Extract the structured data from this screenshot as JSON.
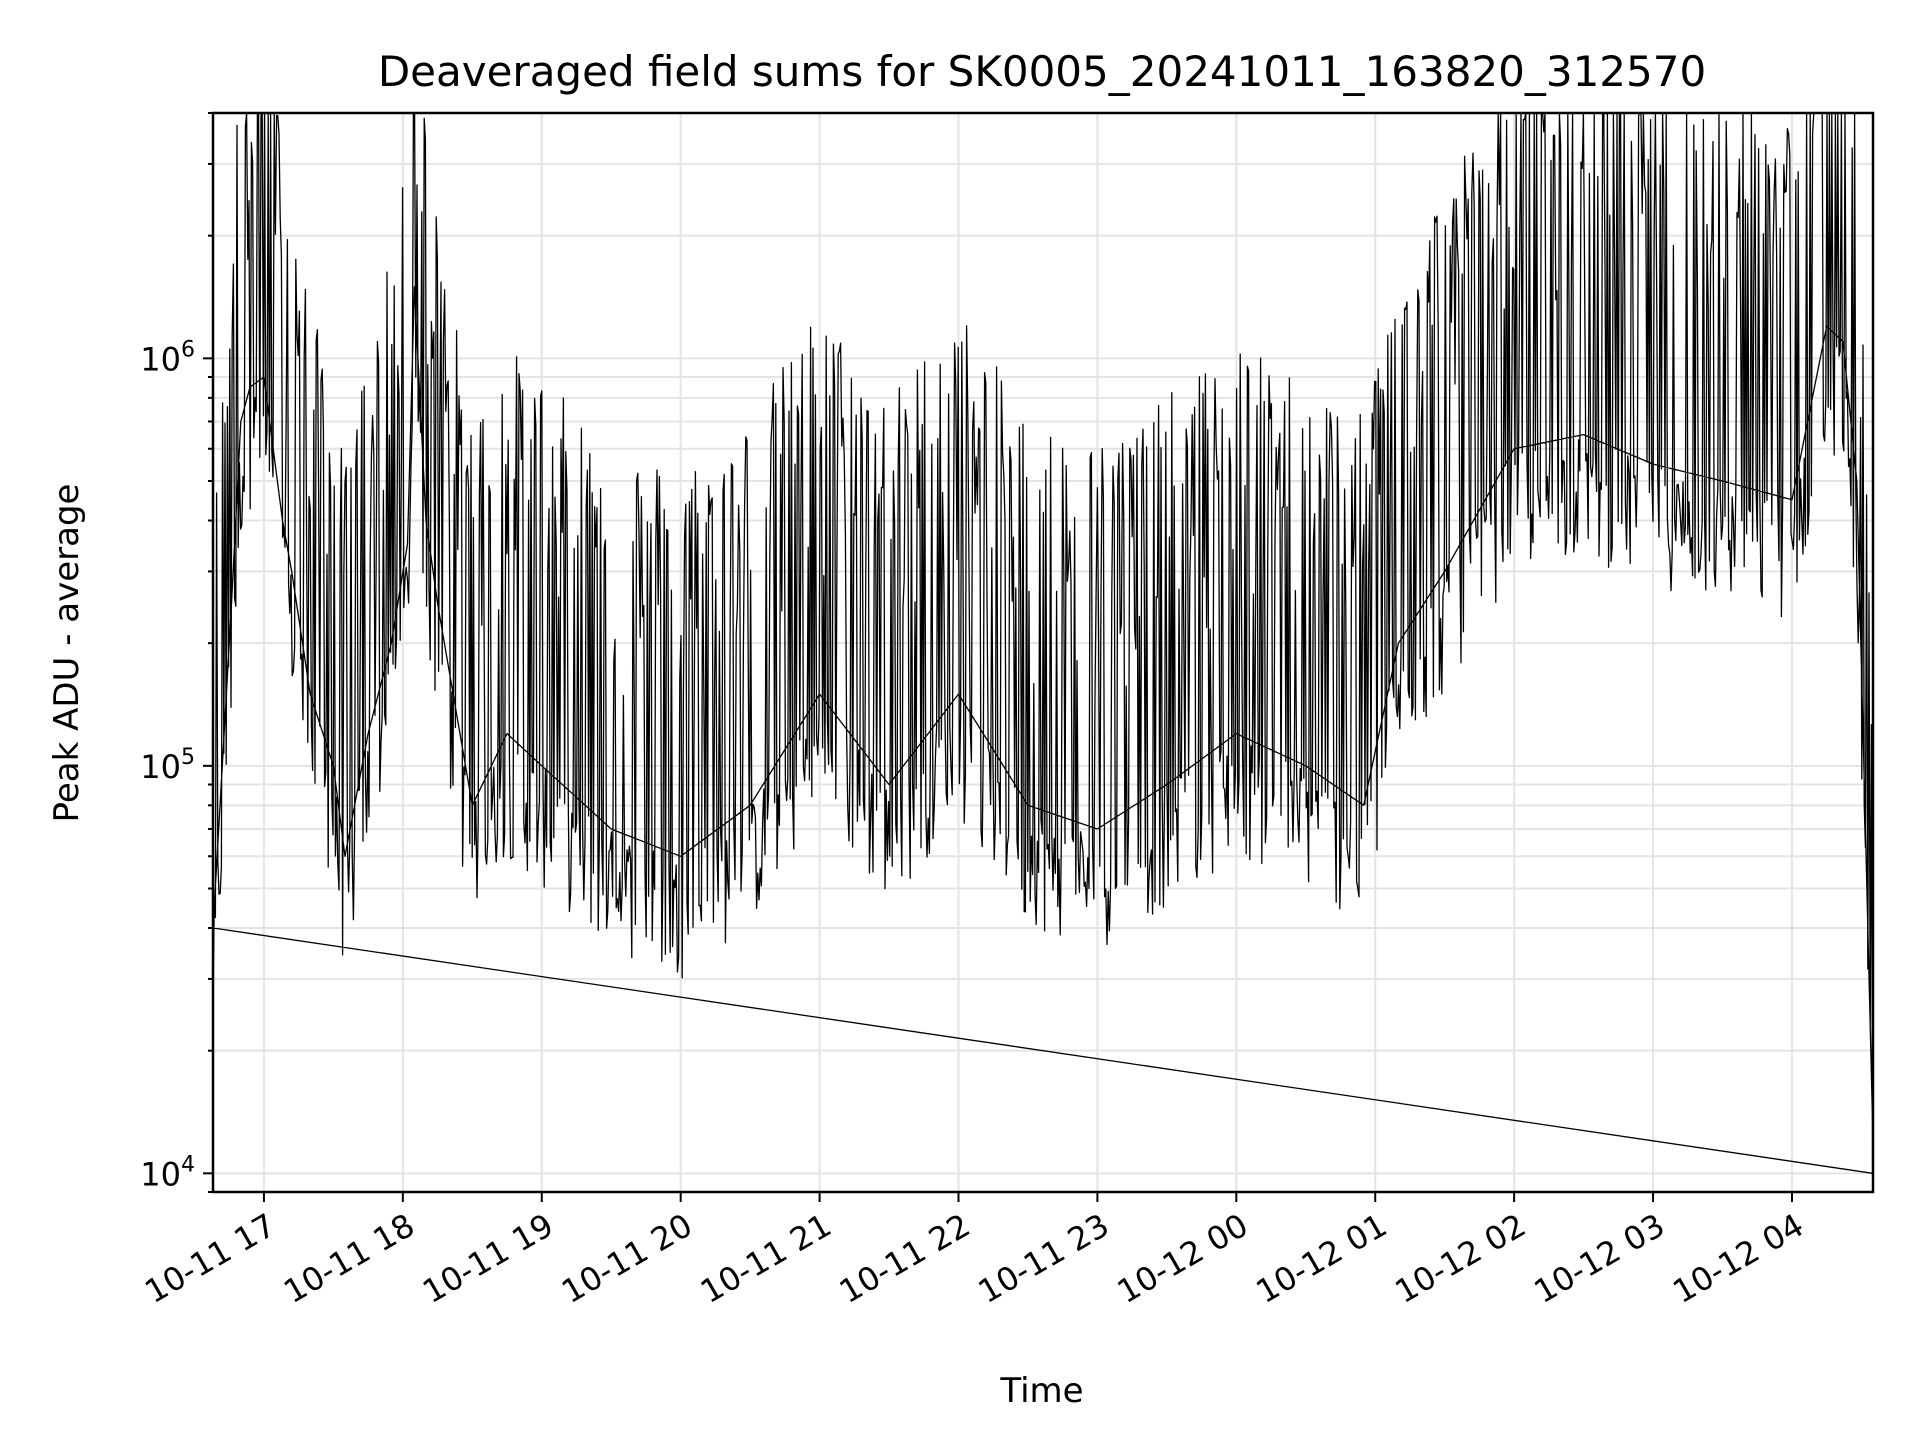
{
  "chart_data": {
    "type": "line",
    "title": "Deaveraged field sums for SK0005_20241011_163820_312570",
    "xlabel": "Time",
    "ylabel": "Peak ADU - average",
    "yscale": "log",
    "ylim": [
      9000,
      4000000
    ],
    "xlim": [
      "2024-10-11 16:38",
      "2024-10-12 04:35"
    ],
    "grid": true,
    "x_ticks": [
      "10-11 17",
      "10-11 18",
      "10-11 19",
      "10-11 20",
      "10-11 21",
      "10-11 22",
      "10-11 23",
      "10-12 00",
      "10-12 01",
      "10-12 02",
      "10-12 03",
      "10-12 04"
    ],
    "y_ticks": [
      "10^4",
      "10^5",
      "10^6"
    ],
    "series": [
      {
        "color": "#000000",
        "x": [
          "2024-10-11 16:38",
          "2024-10-11 16:42",
          "2024-10-11 16:46",
          "2024-10-11 16:50",
          "2024-10-11 16:54",
          "2024-10-11 17:00",
          "2024-10-11 17:08",
          "2024-10-11 17:12",
          "2024-10-11 17:20",
          "2024-10-11 17:30",
          "2024-10-11 17:35",
          "2024-10-11 17:45",
          "2024-10-11 17:55",
          "2024-10-11 18:02",
          "2024-10-11 18:05",
          "2024-10-11 18:10",
          "2024-10-11 18:15",
          "2024-10-11 18:30",
          "2024-10-11 18:45",
          "2024-10-11 19:00",
          "2024-10-11 19:30",
          "2024-10-11 20:00",
          "2024-10-11 20:30",
          "2024-10-11 21:00",
          "2024-10-11 21:30",
          "2024-10-11 22:00",
          "2024-10-11 22:30",
          "2024-10-11 23:00",
          "2024-10-11 23:30",
          "2024-10-12 00:00",
          "2024-10-12 00:30",
          "2024-10-12 00:55",
          "2024-10-12 01:10",
          "2024-10-12 01:30",
          "2024-10-12 02:00",
          "2024-10-12 02:30",
          "2024-10-12 03:00",
          "2024-10-12 03:30",
          "2024-10-12 04:00",
          "2024-10-12 04:15",
          "2024-10-12 04:22",
          "2024-10-12 04:28",
          "2024-10-12 04:32",
          "2024-10-12 04:35"
        ],
        "y": [
          40000,
          100000,
          250000,
          700000,
          850000,
          900000,
          400000,
          300000,
          150000,
          100000,
          60000,
          120000,
          200000,
          350000,
          1500000,
          400000,
          250000,
          80000,
          120000,
          100000,
          70000,
          60000,
          80000,
          150000,
          90000,
          150000,
          80000,
          70000,
          90000,
          120000,
          100000,
          80000,
          200000,
          300000,
          600000,
          650000,
          550000,
          500000,
          450000,
          1200000,
          1100000,
          500000,
          60000,
          12000
        ]
      }
    ]
  }
}
